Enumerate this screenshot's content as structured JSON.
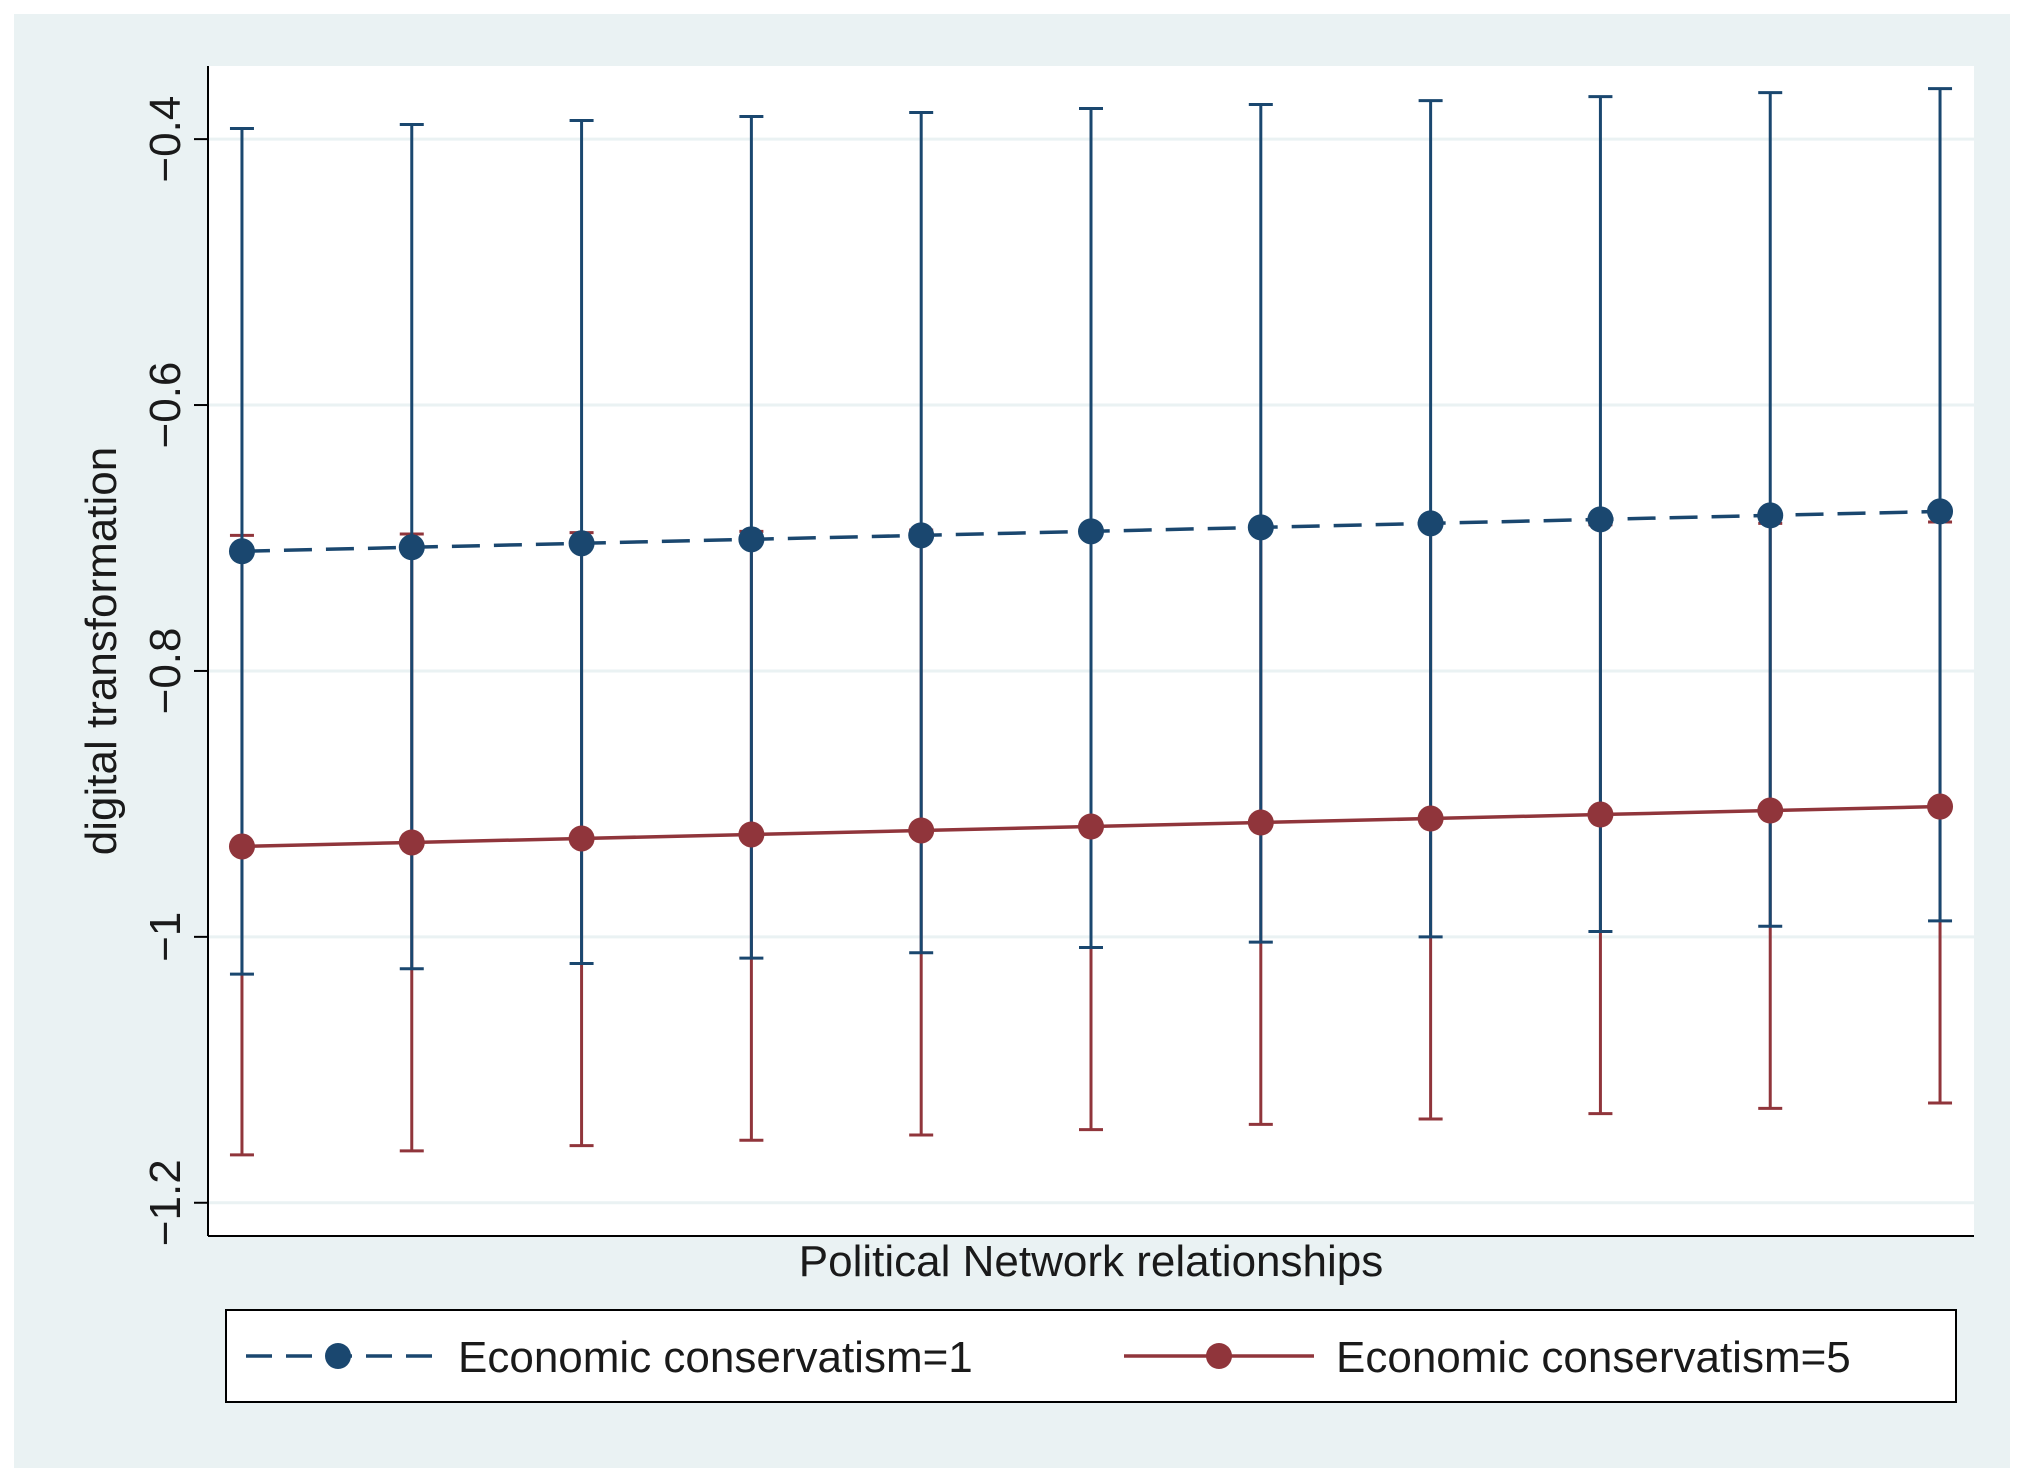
{
  "chart_data": {
    "type": "line",
    "title": "",
    "xlabel": "Political Network relationships",
    "ylabel": "digital  transformation",
    "ylim": [
      -1.225,
      -0.345
    ],
    "yticks": [
      -1.2,
      -1,
      -0.8,
      -0.6,
      -0.4
    ],
    "ytick_labels": [
      "−1.2",
      "−1",
      "−0.8",
      "−0.6",
      "−0.4"
    ],
    "x": [
      1,
      2,
      3,
      4,
      5,
      6,
      7,
      8,
      9,
      10,
      11
    ],
    "xlim": [
      0.8,
      11.2
    ],
    "grid": true,
    "legend_position": "bottom",
    "series": [
      {
        "name": "Economic conservatism=1",
        "line_style": "dashed",
        "marker": "circle",
        "color": "#1a476f",
        "values": [
          -0.71,
          -0.707,
          -0.704,
          -0.701,
          -0.698,
          -0.695,
          -0.692,
          -0.689,
          -0.686,
          -0.683,
          -0.68
        ],
        "ci_upper": [
          -0.392,
          -0.389,
          -0.386,
          -0.383,
          -0.38,
          -0.377,
          -0.374,
          -0.371,
          -0.368,
          -0.365,
          -0.362
        ],
        "ci_lower": [
          -1.028,
          -1.024,
          -1.02,
          -1.016,
          -1.012,
          -1.008,
          -1.004,
          -1.0,
          -0.996,
          -0.992,
          -0.988
        ]
      },
      {
        "name": "Economic conservatism=5",
        "line_style": "solid",
        "marker": "circle",
        "color": "#90353b",
        "values": [
          -0.932,
          -0.929,
          -0.926,
          -0.923,
          -0.92,
          -0.917,
          -0.914,
          -0.911,
          -0.908,
          -0.905,
          -0.902
        ],
        "ci_upper": [
          -0.698,
          -0.697,
          -0.696,
          -0.695,
          -0.694,
          -0.693,
          -0.692,
          -0.691,
          -0.69,
          -0.689,
          -0.688
        ],
        "ci_lower": [
          -1.164,
          -1.161,
          -1.157,
          -1.153,
          -1.149,
          -1.145,
          -1.141,
          -1.137,
          -1.133,
          -1.129,
          -1.125
        ]
      }
    ]
  }
}
